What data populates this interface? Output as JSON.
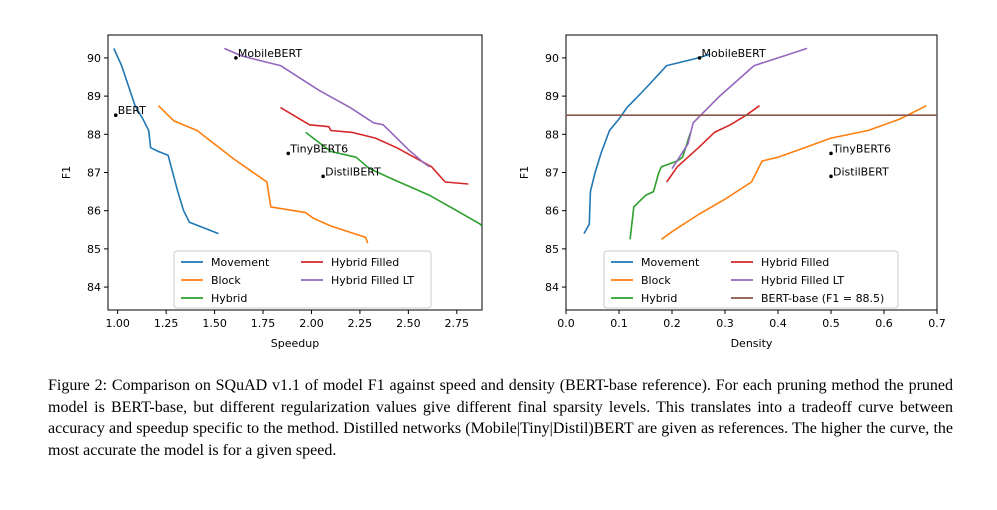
{
  "caption": "Figure 2: Comparison on SQuAD v1.1 of model F1 against speed and density (BERT-base reference). For each pruning method the pruned model is BERT-base, but different regularization values give different final sparsity levels. This translates into a tradeoff curve between accuracy and speedup specific to the method. Distilled networks (Mobile|Tiny|Distil)BERT are given as references. The higher the curve, the most accurate the model is for a given speed.",
  "chart_data": [
    {
      "type": "line",
      "xlabel": "Speedup",
      "ylabel": "F1",
      "xlim": [
        0.95,
        2.88
      ],
      "ylim": [
        83.4,
        90.6
      ],
      "xticks": [
        1.0,
        1.25,
        1.5,
        1.75,
        2.0,
        2.25,
        2.5,
        2.75
      ],
      "xtick_labels": [
        "1.00",
        "1.25",
        "1.50",
        "1.75",
        "2.00",
        "2.25",
        "2.50",
        "2.75"
      ],
      "yticks": [
        84,
        85,
        86,
        87,
        88,
        89,
        90
      ],
      "ytick_labels": [
        "84",
        "85",
        "86",
        "87",
        "88",
        "89",
        "90"
      ],
      "grid": false,
      "legend": "bottom-center",
      "legend_columns": 2,
      "series": [
        {
          "name": "Movement",
          "color": "#1f77b4",
          "points": [
            [
              0.98,
              90.25
            ],
            [
              1.02,
              89.8
            ],
            [
              1.06,
              89.2
            ],
            [
              1.09,
              88.75
            ],
            [
              1.13,
              88.4
            ],
            [
              1.16,
              88.1
            ],
            [
              1.17,
              87.65
            ],
            [
              1.21,
              87.55
            ],
            [
              1.26,
              87.45
            ],
            [
              1.31,
              86.5
            ],
            [
              1.34,
              86.0
            ],
            [
              1.37,
              85.7
            ],
            [
              1.52,
              85.4
            ]
          ]
        },
        {
          "name": "Block",
          "color": "#ff7f0e",
          "points": [
            [
              1.21,
              88.75
            ],
            [
              1.29,
              88.35
            ],
            [
              1.41,
              88.1
            ],
            [
              1.6,
              87.35
            ],
            [
              1.77,
              86.75
            ],
            [
              1.79,
              86.1
            ],
            [
              1.97,
              85.95
            ],
            [
              2.01,
              85.8
            ],
            [
              2.1,
              85.6
            ],
            [
              2.28,
              85.3
            ],
            [
              2.29,
              85.15
            ]
          ]
        },
        {
          "name": "Hybrid",
          "color": "#2ca02c",
          "points": [
            [
              1.97,
              88.05
            ],
            [
              2.1,
              87.55
            ],
            [
              2.23,
              87.4
            ],
            [
              2.3,
              87.1
            ],
            [
              2.43,
              86.8
            ],
            [
              2.61,
              86.4
            ],
            [
              2.75,
              86.0
            ],
            [
              2.87,
              85.65
            ],
            [
              2.88,
              85.6
            ]
          ]
        },
        {
          "name": "Hybrid Filled",
          "color": "#d62728",
          "points": [
            [
              1.84,
              88.7
            ],
            [
              1.99,
              88.25
            ],
            [
              2.09,
              88.2
            ],
            [
              2.1,
              88.1
            ],
            [
              2.21,
              88.05
            ],
            [
              2.33,
              87.9
            ],
            [
              2.44,
              87.65
            ],
            [
              2.62,
              87.15
            ],
            [
              2.69,
              86.75
            ],
            [
              2.81,
              86.7
            ]
          ]
        },
        {
          "name": "Hybrid Filled LT",
          "color": "#9467bd",
          "points": [
            [
              1.55,
              90.25
            ],
            [
              1.64,
              90.05
            ],
            [
              1.84,
              89.8
            ],
            [
              2.04,
              89.15
            ],
            [
              2.2,
              88.7
            ],
            [
              2.32,
              88.3
            ],
            [
              2.37,
              88.25
            ],
            [
              2.43,
              87.95
            ],
            [
              2.5,
              87.6
            ],
            [
              2.58,
              87.25
            ],
            [
              2.61,
              87.15
            ]
          ]
        }
      ],
      "annotations": [
        {
          "text": "MobileBERT",
          "x": 1.61,
          "y": 90.0
        },
        {
          "text": "BERT",
          "x": 0.99,
          "y": 88.5
        },
        {
          "text": "TinyBERT6",
          "x": 1.88,
          "y": 87.5
        },
        {
          "text": "DistilBERT",
          "x": 2.06,
          "y": 86.9
        }
      ]
    },
    {
      "type": "line",
      "xlabel": "Density",
      "ylabel": "F1",
      "xlim": [
        0.0,
        0.7
      ],
      "ylim": [
        83.4,
        90.6
      ],
      "xticks": [
        0.0,
        0.1,
        0.2,
        0.3,
        0.4,
        0.5,
        0.6,
        0.7
      ],
      "xtick_labels": [
        "0.0",
        "0.1",
        "0.2",
        "0.3",
        "0.4",
        "0.5",
        "0.6",
        "0.7"
      ],
      "yticks": [
        84,
        85,
        86,
        87,
        88,
        89,
        90
      ],
      "ytick_labels": [
        "84",
        "85",
        "86",
        "87",
        "88",
        "89",
        "90"
      ],
      "grid": false,
      "legend": "bottom-center",
      "legend_columns": 2,
      "series": [
        {
          "name": "Movement",
          "color": "#1f77b4",
          "points": [
            [
              0.034,
              85.4
            ],
            [
              0.044,
              85.65
            ],
            [
              0.046,
              86.5
            ],
            [
              0.055,
              87.0
            ],
            [
              0.066,
              87.5
            ],
            [
              0.082,
              88.1
            ],
            [
              0.1,
              88.4
            ],
            [
              0.115,
              88.7
            ],
            [
              0.15,
              89.2
            ],
            [
              0.19,
              89.8
            ],
            [
              0.25,
              90.0
            ],
            [
              0.272,
              90.1
            ]
          ]
        },
        {
          "name": "Block",
          "color": "#ff7f0e",
          "points": [
            [
              0.18,
              85.25
            ],
            [
              0.2,
              85.45
            ],
            [
              0.25,
              85.9
            ],
            [
              0.3,
              86.3
            ],
            [
              0.35,
              86.75
            ],
            [
              0.37,
              87.3
            ],
            [
              0.4,
              87.4
            ],
            [
              0.45,
              87.65
            ],
            [
              0.5,
              87.9
            ],
            [
              0.57,
              88.1
            ],
            [
              0.63,
              88.4
            ],
            [
              0.68,
              88.75
            ]
          ]
        },
        {
          "name": "Hybrid",
          "color": "#2ca02c",
          "points": [
            [
              0.121,
              85.25
            ],
            [
              0.128,
              86.1
            ],
            [
              0.15,
              86.4
            ],
            [
              0.165,
              86.5
            ],
            [
              0.175,
              87.0
            ],
            [
              0.18,
              87.15
            ],
            [
              0.21,
              87.3
            ],
            [
              0.22,
              87.4
            ],
            [
              0.235,
              88.05
            ]
          ]
        },
        {
          "name": "Hybrid Filled",
          "color": "#d62728",
          "points": [
            [
              0.19,
              86.75
            ],
            [
              0.21,
              87.15
            ],
            [
              0.25,
              87.65
            ],
            [
              0.28,
              88.05
            ],
            [
              0.31,
              88.25
            ],
            [
              0.34,
              88.5
            ],
            [
              0.365,
              88.75
            ]
          ]
        },
        {
          "name": "Hybrid Filled LT",
          "color": "#9467bd",
          "points": [
            [
              0.2,
              87.1
            ],
            [
              0.23,
              87.75
            ],
            [
              0.24,
              88.3
            ],
            [
              0.29,
              89.0
            ],
            [
              0.355,
              89.8
            ],
            [
              0.4,
              90.0
            ],
            [
              0.455,
              90.25
            ]
          ]
        },
        {
          "name": "BERT-base (F1 = 88.5)",
          "color": "#8c564b",
          "hline": 88.5
        }
      ],
      "annotations": [
        {
          "text": "MobileBERT",
          "x": 0.252,
          "y": 90.0
        },
        {
          "text": "TinyBERT6",
          "x": 0.5,
          "y": 87.5
        },
        {
          "text": "DistilBERT",
          "x": 0.5,
          "y": 86.9
        }
      ]
    }
  ]
}
